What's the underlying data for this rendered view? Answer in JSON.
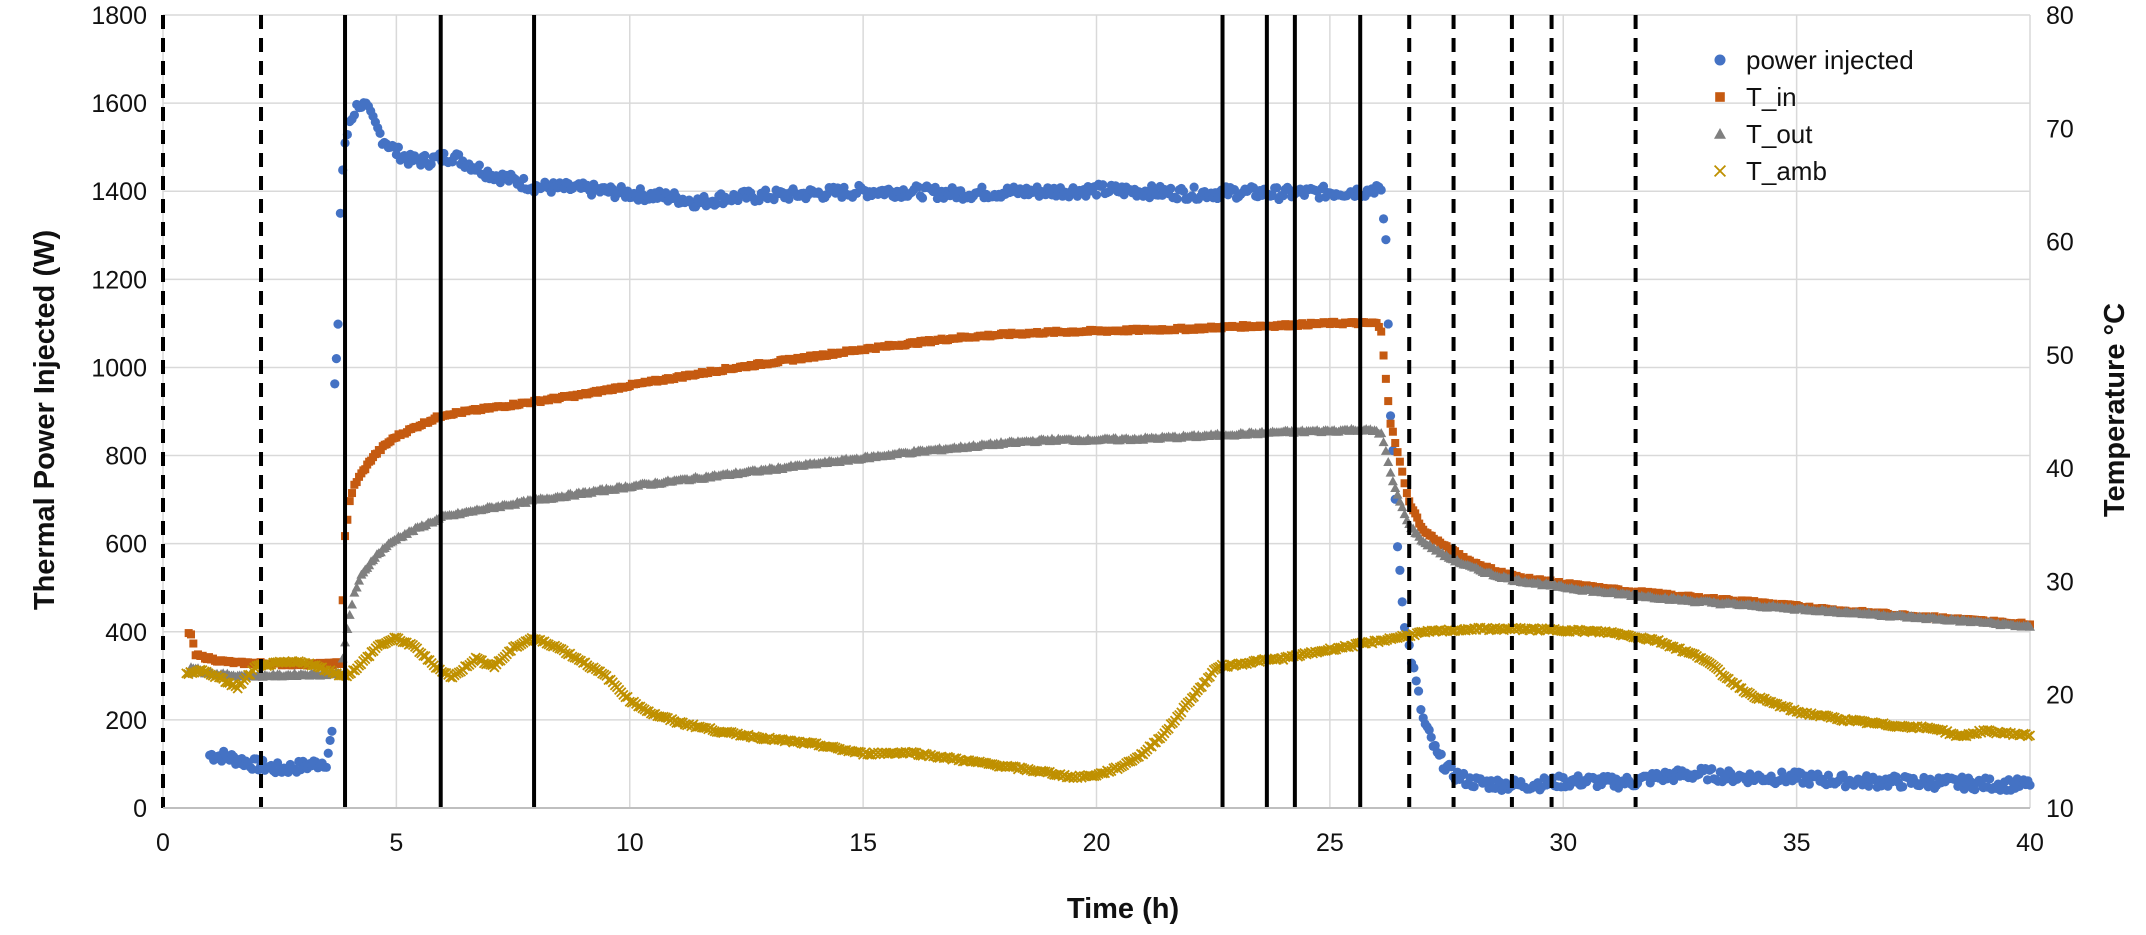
{
  "chart_data": {
    "type": "scatter",
    "title": "",
    "xlabel": "Time (h)",
    "ylabel_left": "Thermal Power Injected (W)",
    "ylabel_right": "Temperature °C",
    "xlim": [
      0,
      40
    ],
    "ylim_left": [
      0,
      1800
    ],
    "ylim_right": [
      10,
      80
    ],
    "x_ticks": [
      "0",
      "5",
      "10",
      "15",
      "20",
      "25",
      "30",
      "35",
      "40"
    ],
    "y_left_ticks": [
      "0",
      "200",
      "400",
      "600",
      "800",
      "1000",
      "1200",
      "1400",
      "1600",
      "1800"
    ],
    "y_right_ticks": [
      "10",
      "20",
      "30",
      "40",
      "50",
      "60",
      "70",
      "80"
    ],
    "grid": true,
    "legend_position": "top-right",
    "legend": [
      "power injected",
      "T_in",
      "T_out",
      "T_amb"
    ],
    "colors": {
      "power injected": "#4472c4",
      "T_in": "#c55a11",
      "T_out": "#7f7f7f",
      "T_amb": "#bf9000",
      "vlines": "#000000"
    },
    "vertical_lines_solid": [
      3.9,
      5.95,
      7.95,
      22.7,
      23.65,
      24.25,
      25.65
    ],
    "vertical_lines_dashed": [
      0,
      2.1,
      26.7,
      27.65,
      28.9,
      29.75,
      31.55
    ],
    "series": [
      {
        "name": "power injected",
        "axis": "left",
        "marker": "circle",
        "x": [
          1.0,
          1.3,
          1.6,
          2.0,
          2.5,
          3.0,
          3.5,
          3.62,
          3.68,
          3.75,
          3.8,
          3.85,
          3.9,
          4.0,
          4.1,
          4.2,
          4.35,
          4.5,
          4.7,
          5.0,
          5.3,
          5.7,
          6.2,
          7.0,
          8.0,
          9.0,
          10.0,
          11.0,
          11.5,
          12.0,
          13.0,
          14.0,
          15.0,
          16.0,
          17.0,
          18.0,
          19.0,
          20.0,
          21.0,
          22.0,
          23.0,
          24.0,
          25.0,
          25.8,
          26.0,
          26.1,
          26.2,
          26.3,
          26.45,
          26.6,
          26.8,
          27.0,
          27.3,
          27.6,
          28.0,
          28.5,
          29.0,
          29.5,
          30.0,
          30.5,
          31.0,
          31.5,
          32.0,
          32.5,
          33.0,
          33.5,
          34.0,
          35.0,
          36.0,
          37.0,
          38.0,
          39.0,
          40.0
        ],
        "y": [
          120,
          118,
          110,
          98,
          88,
          95,
          105,
          170,
          950,
          1100,
          1350,
          1450,
          1500,
          1560,
          1580,
          1600,
          1590,
          1560,
          1520,
          1490,
          1470,
          1470,
          1480,
          1440,
          1410,
          1405,
          1395,
          1385,
          1375,
          1385,
          1390,
          1395,
          1400,
          1400,
          1395,
          1398,
          1400,
          1403,
          1400,
          1395,
          1398,
          1395,
          1398,
          1400,
          1410,
          1390,
          1290,
          900,
          600,
          420,
          310,
          200,
          120,
          80,
          60,
          55,
          52,
          55,
          60,
          62,
          58,
          60,
          70,
          75,
          78,
          72,
          70,
          68,
          62,
          60,
          58,
          55,
          52
        ]
      },
      {
        "name": "T_in",
        "axis": "right",
        "marker": "square",
        "x": [
          0.55,
          0.6,
          0.7,
          0.9,
          1.2,
          1.6,
          2.0,
          2.5,
          3.0,
          3.5,
          3.8,
          3.9,
          4.0,
          4.1,
          4.25,
          4.5,
          4.75,
          5.0,
          5.5,
          6.0,
          7.0,
          8.0,
          9.0,
          10.0,
          11.0,
          12.0,
          13.0,
          14.0,
          15.0,
          16.0,
          17.0,
          18.0,
          19.0,
          20.0,
          21.0,
          22.0,
          23.0,
          24.0,
          25.0,
          25.6,
          26.0,
          26.1,
          26.2,
          26.3,
          26.5,
          26.7,
          27.0,
          27.5,
          28.0,
          28.5,
          29.0,
          30.0,
          31.0,
          32.0,
          33.0,
          34.0,
          35.0,
          36.0,
          37.0,
          38.0,
          39.0,
          40.0
        ],
        "y": [
          25.5,
          25.3,
          23.5,
          23.3,
          23.0,
          22.8,
          22.8,
          22.7,
          22.7,
          22.7,
          22.8,
          34.0,
          37.0,
          38.5,
          39.5,
          41.0,
          42.0,
          42.8,
          43.8,
          44.7,
          45.3,
          45.9,
          46.5,
          47.3,
          48.0,
          48.7,
          49.3,
          49.9,
          50.5,
          51.0,
          51.5,
          51.8,
          52.0,
          52.1,
          52.2,
          52.3,
          52.5,
          52.6,
          52.8,
          52.8,
          52.8,
          52.0,
          48.0,
          44.0,
          40.5,
          37.0,
          34.5,
          33.0,
          31.8,
          31.0,
          30.4,
          29.8,
          29.3,
          28.9,
          28.5,
          28.2,
          27.8,
          27.4,
          27.1,
          26.8,
          26.5,
          26.2
        ]
      },
      {
        "name": "T_out",
        "axis": "right",
        "marker": "triangle",
        "x": [
          0.55,
          0.6,
          0.7,
          0.9,
          1.2,
          1.6,
          2.0,
          2.5,
          3.0,
          3.5,
          3.8,
          3.9,
          4.0,
          4.1,
          4.25,
          4.5,
          4.75,
          5.0,
          5.5,
          6.0,
          7.0,
          8.0,
          9.0,
          10.0,
          11.0,
          12.0,
          13.0,
          14.0,
          15.0,
          16.0,
          17.0,
          18.0,
          19.0,
          20.0,
          21.0,
          22.0,
          23.0,
          24.0,
          25.0,
          25.6,
          26.0,
          26.1,
          26.2,
          26.3,
          26.5,
          26.7,
          27.0,
          27.5,
          28.0,
          28.5,
          29.0,
          30.0,
          31.0,
          32.0,
          33.0,
          34.0,
          35.0,
          36.0,
          37.0,
          38.0,
          39.0,
          40.0
        ],
        "y": [
          22.0,
          22.5,
          22.3,
          22.0,
          21.8,
          21.7,
          21.7,
          21.7,
          21.8,
          21.8,
          22.0,
          24.5,
          27.0,
          29.0,
          30.5,
          32.0,
          33.0,
          33.8,
          34.8,
          35.7,
          36.5,
          37.2,
          37.8,
          38.4,
          38.9,
          39.4,
          39.9,
          40.4,
          40.9,
          41.4,
          41.8,
          42.2,
          42.5,
          42.5,
          42.6,
          42.8,
          43.0,
          43.2,
          43.3,
          43.4,
          43.3,
          43.0,
          41.5,
          39.5,
          37.0,
          35.0,
          33.5,
          32.2,
          31.3,
          30.6,
          30.1,
          29.5,
          29.0,
          28.6,
          28.2,
          27.9,
          27.6,
          27.3,
          27.0,
          26.7,
          26.4,
          26.0
        ]
      },
      {
        "name": "T_amb",
        "axis": "right",
        "marker": "x",
        "x": [
          0.5,
          0.8,
          1.2,
          1.6,
          2.0,
          2.5,
          3.0,
          3.5,
          3.9,
          4.2,
          4.6,
          5.0,
          5.4,
          5.8,
          6.2,
          6.7,
          7.1,
          7.5,
          7.9,
          8.4,
          9.0,
          9.5,
          10.0,
          10.5,
          11.0,
          12.0,
          13.0,
          14.0,
          15.0,
          16.0,
          17.0,
          18.0,
          19.0,
          19.5,
          20.0,
          20.5,
          21.0,
          21.5,
          22.0,
          22.3,
          22.6,
          22.9,
          23.5,
          24.0,
          25.0,
          26.0,
          27.0,
          28.0,
          29.0,
          30.0,
          31.0,
          32.0,
          33.0,
          33.5,
          34.0,
          35.0,
          36.0,
          37.0,
          38.0,
          38.5,
          39.0,
          40.0
        ],
        "y": [
          21.8,
          22.2,
          21.5,
          20.6,
          22.5,
          22.8,
          22.9,
          22.2,
          21.6,
          22.5,
          24.3,
          25.0,
          24.2,
          22.6,
          21.5,
          23.2,
          22.5,
          24.1,
          25.0,
          24.3,
          22.9,
          21.6,
          19.5,
          18.3,
          17.6,
          16.7,
          16.1,
          15.6,
          14.8,
          14.9,
          14.3,
          13.7,
          13.1,
          12.7,
          12.9,
          13.6,
          14.8,
          16.8,
          19.5,
          21.0,
          22.5,
          22.6,
          23.0,
          23.2,
          24.0,
          24.7,
          25.5,
          25.8,
          25.8,
          25.7,
          25.5,
          24.8,
          23.2,
          21.5,
          20.0,
          18.5,
          17.8,
          17.3,
          17.0,
          16.3,
          16.8,
          16.4
        ]
      }
    ]
  }
}
